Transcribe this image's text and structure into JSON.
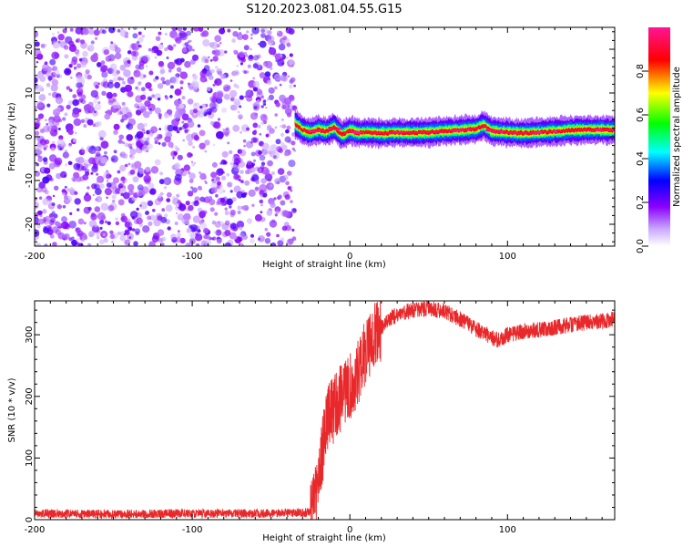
{
  "title": "S120.2023.081.04.55.G15",
  "chart_data": [
    {
      "type": "heatmap",
      "xlabel": "Height of straight line (km)",
      "ylabel": "Frequency (Hz)",
      "xlim": [
        -200,
        168
      ],
      "ylim": [
        -25,
        25
      ],
      "x_ticks": [
        -200,
        -100,
        0,
        100
      ],
      "y_ticks": [
        -20,
        -10,
        0,
        10,
        20
      ],
      "colorbar": {
        "label": "Normalized spectral amplitude",
        "range": [
          0,
          1
        ],
        "ticks": [
          0.0,
          0.2,
          0.4,
          0.6,
          0.8
        ],
        "colors": [
          "#ffffff",
          "#8b00ff",
          "#0000ff",
          "#00ffff",
          "#00ff00",
          "#ffff00",
          "#ff0000",
          "#ff1493"
        ]
      },
      "noise_region": {
        "x_range": [
          -200,
          -35
        ],
        "typical_amplitude": [
          0.05,
          0.25
        ]
      },
      "signal_trace": {
        "x": [
          -35,
          -30,
          -25,
          -20,
          -15,
          -10,
          -5,
          0,
          5,
          10,
          20,
          30,
          40,
          50,
          60,
          70,
          80,
          85,
          90,
          100,
          110,
          120,
          130,
          140,
          150,
          160,
          168
        ],
        "frequency": [
          3,
          1.5,
          1.0,
          1.6,
          1.2,
          2.2,
          0.4,
          1.4,
          0.9,
          1.0,
          0.8,
          1.0,
          0.9,
          1.0,
          1.3,
          1.5,
          1.8,
          2.6,
          1.3,
          1.0,
          0.8,
          1.0,
          1.2,
          1.5,
          1.6,
          1.6,
          1.5
        ],
        "peak_amplitude": 1.0
      }
    },
    {
      "type": "line",
      "xlabel": "Height of straight line (km)",
      "ylabel": "SNR (10 * v/v)",
      "xlim": [
        -200,
        168
      ],
      "ylim": [
        0,
        355
      ],
      "x_ticks": [
        -200,
        -100,
        0,
        100
      ],
      "y_ticks": [
        0,
        100,
        200,
        300
      ],
      "color": "#e8282a",
      "series": [
        {
          "x": [
            -200,
            -150,
            -100,
            -50,
            -25,
            -22,
            -18,
            -15,
            -10,
            -5,
            0,
            5,
            10,
            15,
            20,
            25,
            30,
            40,
            50,
            60,
            70,
            80,
            90,
            95,
            100,
            110,
            120,
            130,
            140,
            150,
            160,
            168
          ],
          "values": [
            10,
            9,
            10,
            10,
            12,
            30,
            100,
            160,
            180,
            200,
            215,
            240,
            270,
            300,
            310,
            325,
            333,
            340,
            342,
            338,
            325,
            310,
            296,
            290,
            300,
            306,
            308,
            312,
            316,
            320,
            322,
            326
          ]
        }
      ]
    }
  ]
}
